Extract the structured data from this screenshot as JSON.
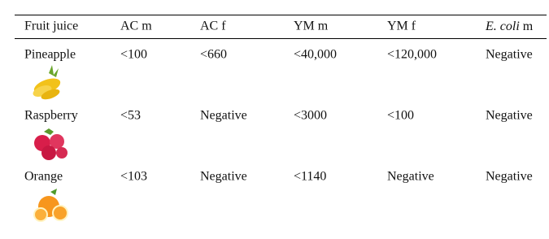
{
  "table": {
    "headers": [
      "Fruit juice",
      "AC m",
      "AC f",
      "YM m",
      "YM f",
      {
        "italic": "E. coli",
        "rest": " m"
      }
    ],
    "rows": [
      [
        "Pineapple",
        "<100",
        "<660",
        "<40,000",
        "<120,000",
        "Negative"
      ],
      [
        "Raspberry",
        "<53",
        "Negative",
        "<3000",
        "<100",
        "Negative"
      ],
      [
        "Orange",
        "<103",
        "Negative",
        "<1140",
        "Negative",
        "Negative"
      ]
    ]
  }
}
